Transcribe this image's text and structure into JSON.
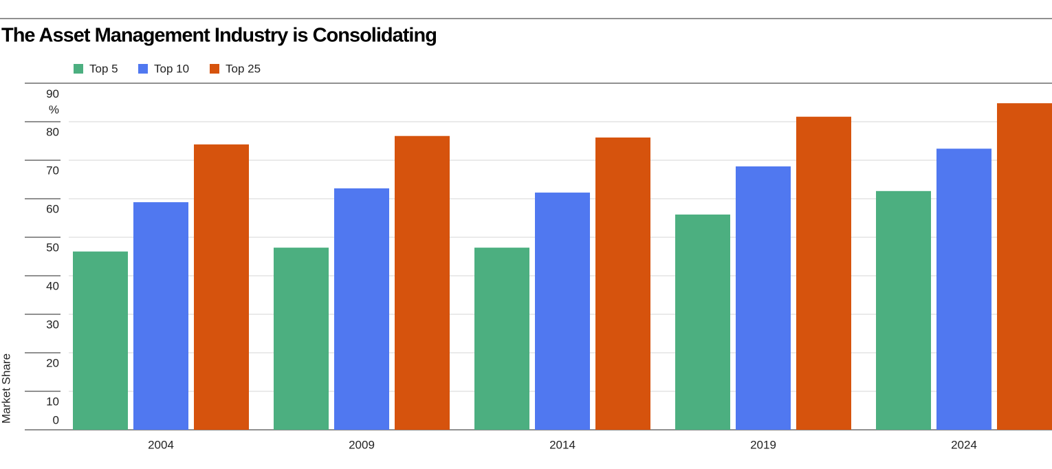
{
  "chart_data": {
    "type": "bar",
    "title": "The Asset Management Industry is Consolidating",
    "y_label": "Market Share",
    "categories": [
      "2004",
      "2009",
      "2014",
      "2019",
      "2024"
    ],
    "series": [
      {
        "name": "Top 5",
        "color": "#4caf80",
        "values": [
          46.3,
          47.3,
          47.3,
          55.9,
          62.0
        ]
      },
      {
        "name": "Top 10",
        "color": "#5078f0",
        "values": [
          59.1,
          62.7,
          61.6,
          68.4,
          73.0
        ]
      },
      {
        "name": "Top 25",
        "color": "#d6530d",
        "values": [
          74.1,
          76.3,
          75.9,
          81.3,
          84.8
        ]
      }
    ],
    "ylim": [
      0,
      90
    ],
    "yticks": [
      0,
      10,
      20,
      30,
      40,
      50,
      60,
      70,
      80,
      {
        "value": 90,
        "label": "90 %"
      }
    ],
    "grid": true
  }
}
